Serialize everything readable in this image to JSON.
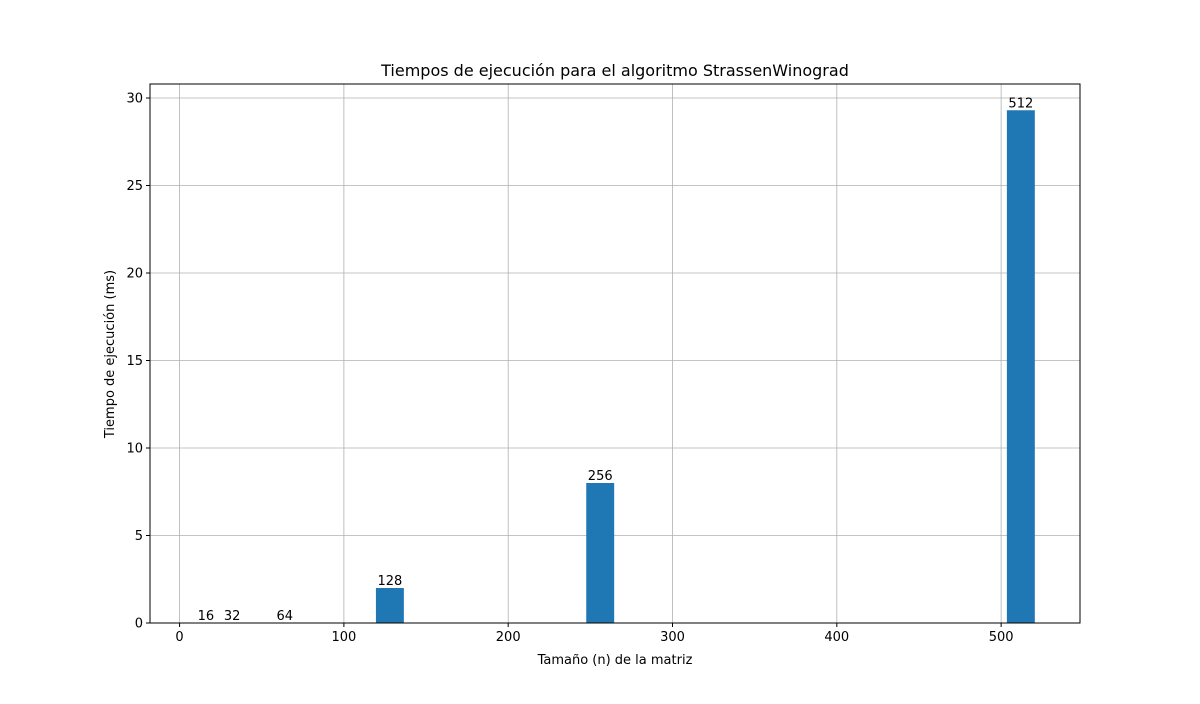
{
  "chart_data": {
    "type": "bar",
    "title": "Tiempos de ejecución para el algoritmo StrassenWinograd",
    "xlabel": "Tamaño (n) de la matriz",
    "ylabel": "Tiempo de ejecución (ms)",
    "x": [
      16,
      32,
      64,
      128,
      256,
      512
    ],
    "values": [
      0.0,
      0.0,
      0.0,
      2.0,
      8.0,
      29.3
    ],
    "data_labels": [
      "16",
      "32",
      "64",
      "128",
      "256",
      "512"
    ],
    "xlim": [
      -18,
      548
    ],
    "ylim": [
      0,
      30.8
    ],
    "xticks": [
      0,
      100,
      200,
      300,
      400,
      500
    ],
    "yticks": [
      0,
      5,
      10,
      15,
      20,
      25,
      30
    ],
    "bar_width": 17,
    "grid": true,
    "bar_color": "#1f77b4"
  }
}
